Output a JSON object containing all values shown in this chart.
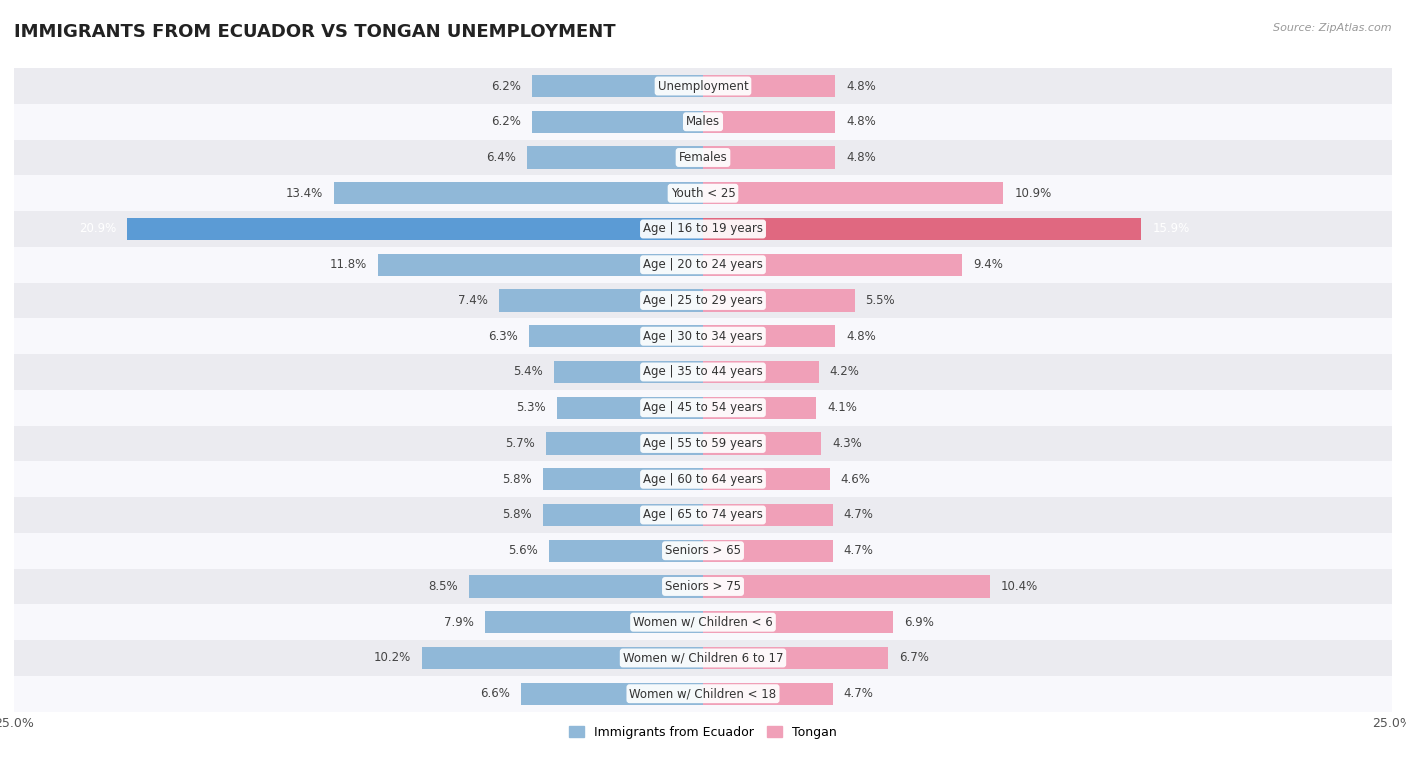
{
  "title": "IMMIGRANTS FROM ECUADOR VS TONGAN UNEMPLOYMENT",
  "source": "Source: ZipAtlas.com",
  "categories": [
    "Unemployment",
    "Males",
    "Females",
    "Youth < 25",
    "Age | 16 to 19 years",
    "Age | 20 to 24 years",
    "Age | 25 to 29 years",
    "Age | 30 to 34 years",
    "Age | 35 to 44 years",
    "Age | 45 to 54 years",
    "Age | 55 to 59 years",
    "Age | 60 to 64 years",
    "Age | 65 to 74 years",
    "Seniors > 65",
    "Seniors > 75",
    "Women w/ Children < 6",
    "Women w/ Children 6 to 17",
    "Women w/ Children < 18"
  ],
  "ecuador_values": [
    6.2,
    6.2,
    6.4,
    13.4,
    20.9,
    11.8,
    7.4,
    6.3,
    5.4,
    5.3,
    5.7,
    5.8,
    5.8,
    5.6,
    8.5,
    7.9,
    10.2,
    6.6
  ],
  "tongan_values": [
    4.8,
    4.8,
    4.8,
    10.9,
    15.9,
    9.4,
    5.5,
    4.8,
    4.2,
    4.1,
    4.3,
    4.6,
    4.7,
    4.7,
    10.4,
    6.9,
    6.7,
    4.7
  ],
  "ecuador_color": "#90b8d8",
  "tongan_color": "#f0a0b8",
  "ecuador_highlight_color": "#5b9bd5",
  "tongan_highlight_color": "#e06880",
  "highlight_row": 4,
  "background_color": "#ffffff",
  "row_even_color": "#ebebf0",
  "row_odd_color": "#f8f8fc",
  "xlim": 25.0,
  "legend_ecuador": "Immigrants from Ecuador",
  "legend_tongan": "Tongan",
  "bar_height": 0.62,
  "label_color_normal": "#444444",
  "label_color_highlight": "#ffffff",
  "category_bg_color": "#ffffff",
  "category_bg_highlight": "#f0f0f8"
}
